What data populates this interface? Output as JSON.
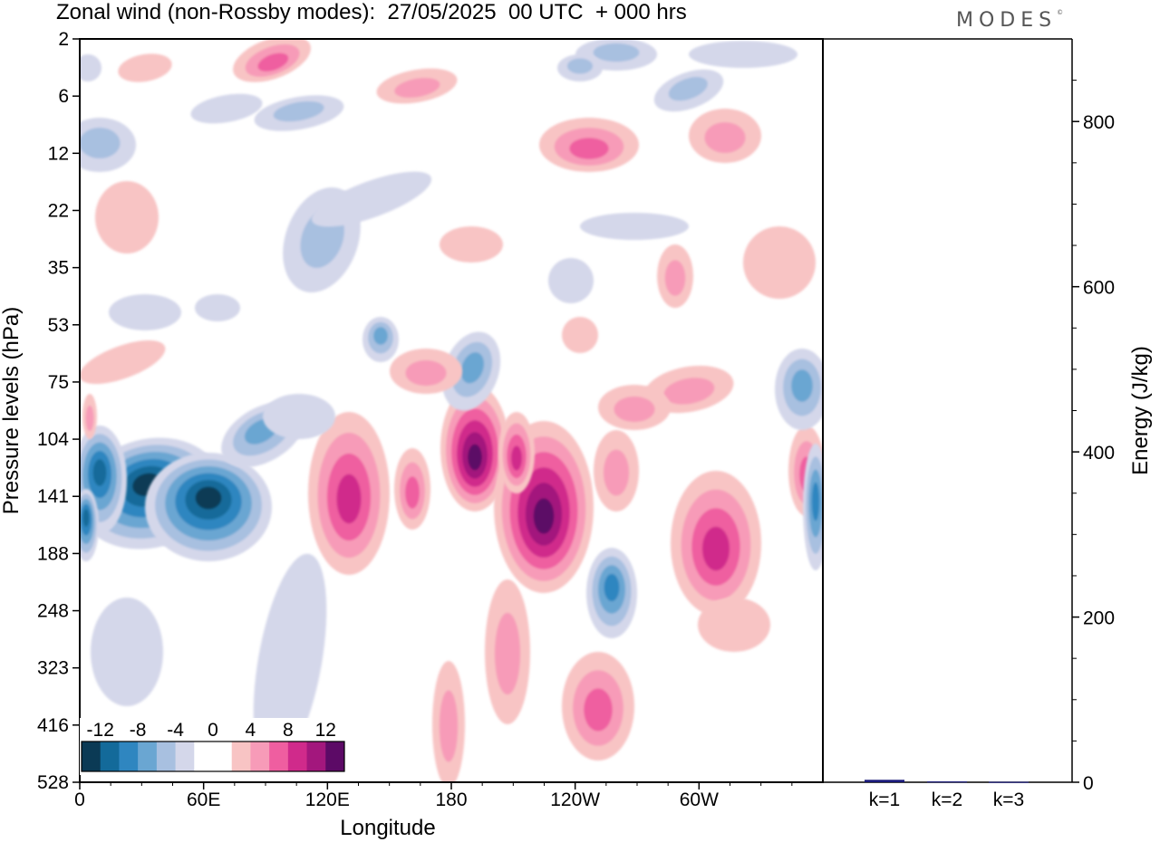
{
  "title": "Zonal wind (non-Rossby modes):  27/05/2025  00 UTC  + 000 hrs",
  "logo": "MODES",
  "chart_data": [
    {
      "type": "heatmap",
      "title": "Zonal wind (non-Rossby modes):  27/05/2025  00 UTC  + 000 hrs",
      "xlabel": "Longitude",
      "ylabel": "Pressure levels (hPa)",
      "x_ticks": [
        "0",
        "60E",
        "120E",
        "180",
        "120W",
        "60W"
      ],
      "y_ticks": [
        "2",
        "6",
        "12",
        "22",
        "35",
        "53",
        "75",
        "104",
        "141",
        "188",
        "248",
        "323",
        "416",
        "528"
      ],
      "colorbar": {
        "labels": [
          "-12",
          "-8",
          "-4",
          "0",
          "4",
          "8",
          "12"
        ],
        "colors": [
          "#0b3a55",
          "#136a9a",
          "#2f86c0",
          "#6aa6d2",
          "#a8c0e0",
          "#d4d7ea",
          "#ffffff",
          "#ffffff",
          "#f8c4c4",
          "#f79bb8",
          "#ef5ea0",
          "#d02a8b",
          "#a3177d",
          "#5c0a66"
        ]
      },
      "features": [
        {
          "lon": 30,
          "level": "141",
          "value": -12
        },
        {
          "lon": 55,
          "level": "141",
          "value": -13
        },
        {
          "lon": 5,
          "level": "188",
          "value": -10
        },
        {
          "lon": 182,
          "level": "104",
          "value": 12
        },
        {
          "lon": 210,
          "level": "141",
          "value": 11
        },
        {
          "lon": 125,
          "level": "141",
          "value": 8
        },
        {
          "lon": 300,
          "level": "188",
          "value": 7
        },
        {
          "lon": 270,
          "level": "248",
          "value": -7
        },
        {
          "lon": 355,
          "level": "188",
          "value": -8
        }
      ]
    },
    {
      "type": "bar",
      "ylabel": "Energy (J/kg)",
      "categories": [
        "k=1",
        "k=2",
        "k=3"
      ],
      "values": [
        3,
        1,
        0.5
      ],
      "ylim": [
        0,
        900
      ],
      "y_ticks": [
        0,
        200,
        400,
        600,
        800
      ],
      "bar_color": "#1a1a7a"
    }
  ]
}
